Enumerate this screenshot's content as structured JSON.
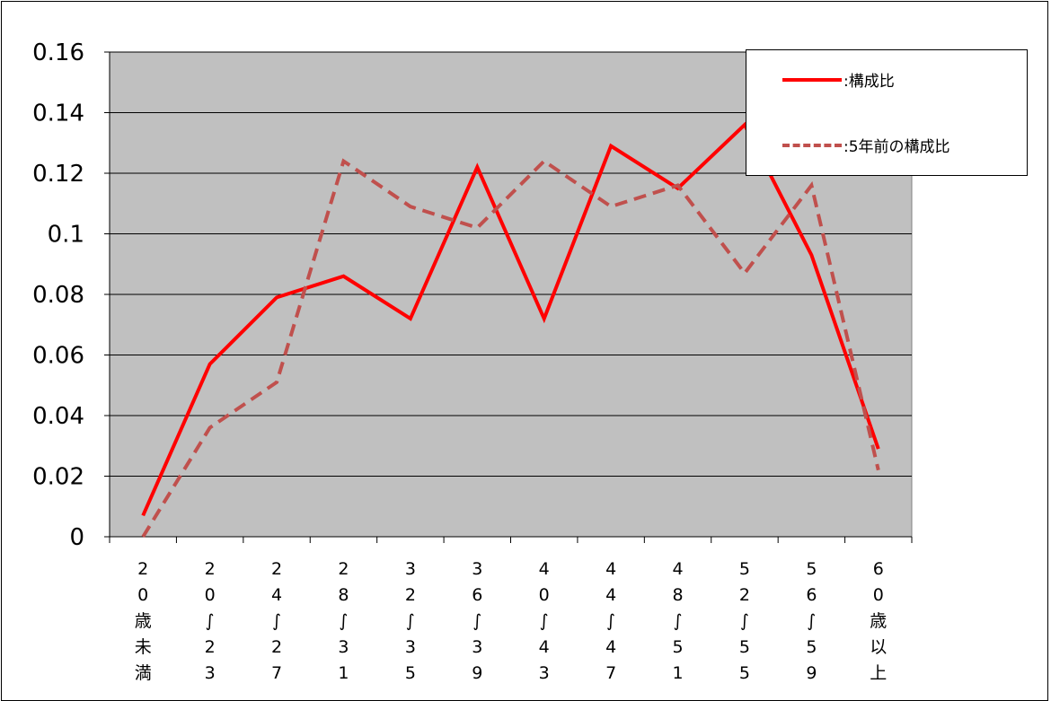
{
  "chart_data": {
    "type": "line",
    "categories": [
      [
        "2",
        "0",
        "歳",
        "未",
        "満"
      ],
      [
        "2",
        "0",
        "∫",
        "2",
        "3"
      ],
      [
        "2",
        "4",
        "∫",
        "2",
        "7"
      ],
      [
        "2",
        "8",
        "∫",
        "3",
        "1"
      ],
      [
        "3",
        "2",
        "∫",
        "3",
        "5"
      ],
      [
        "3",
        "6",
        "∫",
        "3",
        "9"
      ],
      [
        "4",
        "0",
        "∫",
        "4",
        "3"
      ],
      [
        "4",
        "4",
        "∫",
        "4",
        "7"
      ],
      [
        "4",
        "8",
        "∫",
        "5",
        "1"
      ],
      [
        "5",
        "2",
        "∫",
        "5",
        "5"
      ],
      [
        "5",
        "6",
        "∫",
        "5",
        "9"
      ],
      [
        "6",
        "0",
        "歳",
        "以",
        "上"
      ]
    ],
    "series": [
      {
        "name": ":構成比",
        "color": "#ff0000",
        "style": "solid",
        "values": [
          0.007,
          0.057,
          0.079,
          0.086,
          0.072,
          0.122,
          0.072,
          0.129,
          0.115,
          0.136,
          0.093,
          0.029
        ]
      },
      {
        "name": ":5年前の構成比",
        "color": "#c0504d",
        "style": "dashed",
        "values": [
          0.0,
          0.036,
          0.051,
          0.124,
          0.109,
          0.102,
          0.124,
          0.109,
          0.116,
          0.087,
          0.116,
          0.022
        ]
      }
    ],
    "yticks": [
      "0",
      "0.02",
      "0.04",
      "0.06",
      "0.08",
      "0.1",
      "0.12",
      "0.14",
      "0.16"
    ],
    "ylim": [
      0,
      0.16
    ],
    "grid": true,
    "plot_background": "#c0c0c0",
    "legend_position": "top-right",
    "title": "",
    "xlabel": "",
    "ylabel": ""
  }
}
